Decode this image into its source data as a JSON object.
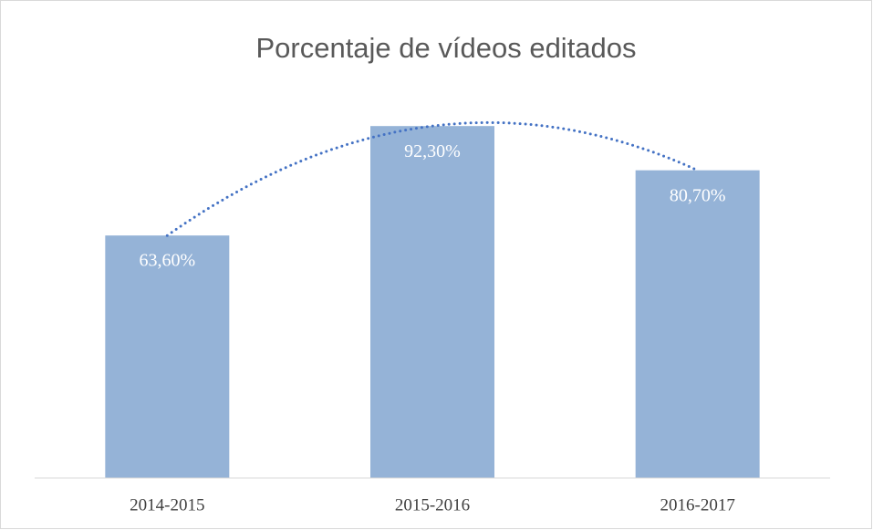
{
  "chart_data": {
    "type": "bar",
    "title": "Porcentaje de vídeos editados",
    "categories": [
      "2014-2015",
      "2015-2016",
      "2016-2017"
    ],
    "values": [
      63.6,
      92.3,
      80.7
    ],
    "value_labels": [
      "63,60%",
      "92,30%",
      "80,70%"
    ],
    "color": "#95b3d7",
    "ylim": [
      0,
      100
    ]
  }
}
